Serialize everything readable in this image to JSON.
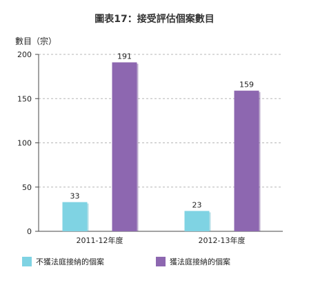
{
  "chart_data": {
    "type": "bar",
    "title": "圖表17：接受評估個案數目",
    "ylabel": "數目（宗）",
    "xlabel": "",
    "categories": [
      "2011-12年度",
      "2012-13年度"
    ],
    "ylim": [
      0,
      200
    ],
    "yticks": [
      0,
      50,
      100,
      150,
      200
    ],
    "grid": true,
    "legend_position": "bottom",
    "series": [
      {
        "name": "不獲法庭接納的個案",
        "values": [
          33,
          23
        ],
        "color": "#7fd3e3"
      },
      {
        "name": "獲法庭接納的個案",
        "values": [
          191,
          159
        ],
        "color": "#8d67b0"
      }
    ]
  }
}
